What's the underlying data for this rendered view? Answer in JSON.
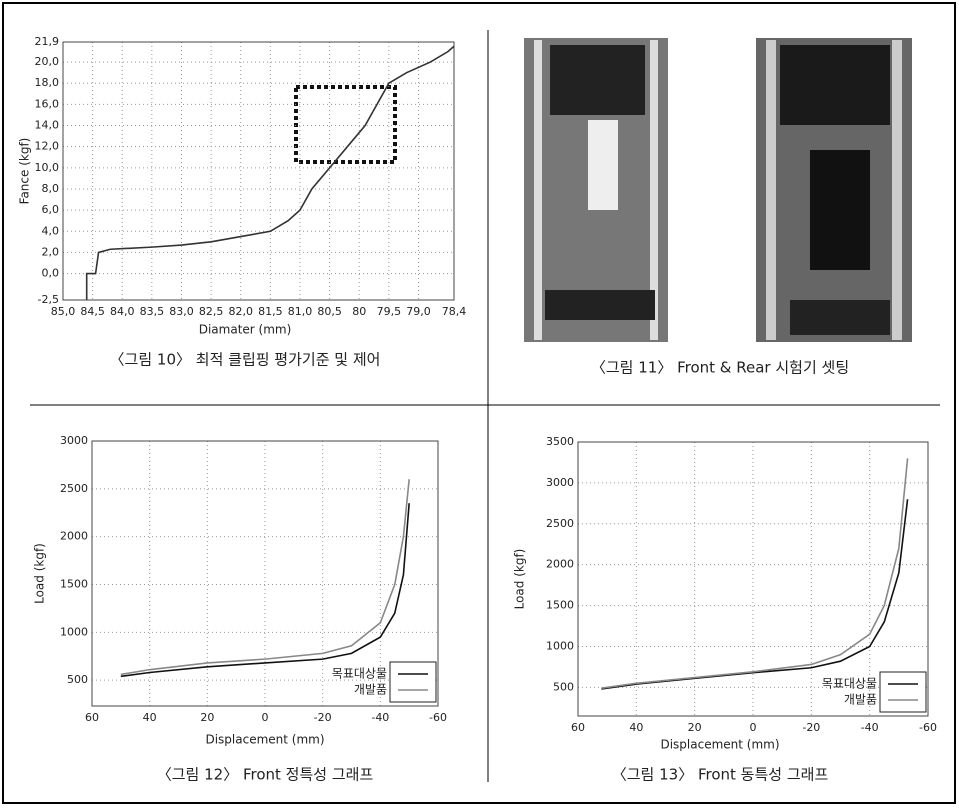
{
  "chart_data": [
    {
      "type": "line",
      "caption": "〈그림 10〉 최적 클립핑 평가기준 및 제어",
      "x_label": "Diamater (mm)",
      "y_label": "Fance (kgf)",
      "xlim": [
        85.0,
        78.4
      ],
      "xticks": [
        {
          "value": 85.0,
          "label": "85,0"
        },
        {
          "value": 84.5,
          "label": "84,5"
        },
        {
          "value": 84.0,
          "label": "84,0"
        },
        {
          "value": 83.5,
          "label": "83,5"
        },
        {
          "value": 83.0,
          "label": "83,0"
        },
        {
          "value": 82.5,
          "label": "82,5"
        },
        {
          "value": 82.0,
          "label": "82,0"
        },
        {
          "value": 81.5,
          "label": "81,5"
        },
        {
          "value": 81.0,
          "label": "81,0"
        },
        {
          "value": 80.5,
          "label": "80,5"
        },
        80,
        {
          "value": 79.5,
          "label": "79,5"
        },
        {
          "value": 79.0,
          "label": "79,0"
        },
        {
          "value": 78.4,
          "label": "78,4"
        }
      ],
      "ylim": [
        -2.5,
        21.9
      ],
      "yticks": [
        {
          "value": -2.5,
          "label": "-2,5"
        },
        {
          "value": 0,
          "label": "0,0"
        },
        {
          "value": 2,
          "label": "2,0"
        },
        {
          "value": 4,
          "label": "4,0"
        },
        {
          "value": 6,
          "label": "6,0"
        },
        {
          "value": 8,
          "label": "8,0"
        },
        {
          "value": 10,
          "label": "10,0"
        },
        {
          "value": 12,
          "label": "12,0"
        },
        {
          "value": 14,
          "label": "14,0"
        },
        {
          "value": 16,
          "label": "16,0"
        },
        {
          "value": 18,
          "label": "18,0"
        },
        {
          "value": 20,
          "label": "20,0"
        },
        {
          "value": 21.9,
          "label": "21,9"
        }
      ],
      "grid": true,
      "series": [
        {
          "color": "#333333",
          "x": [
            84.6,
            84.6,
            84.45,
            84.4,
            84.2,
            83.5,
            83.0,
            82.5,
            82.0,
            81.5,
            81.2,
            81.0,
            80.8,
            80.5,
            80.2,
            79.9,
            79.7,
            79.5,
            79.2,
            78.8,
            78.5,
            78.4
          ],
          "values": [
            -2.5,
            0,
            0,
            2.0,
            2.3,
            2.5,
            2.7,
            3.0,
            3.5,
            4.0,
            5.0,
            6.0,
            8.0,
            10.0,
            12.0,
            14.0,
            16.0,
            18.0,
            19.0,
            20.0,
            21.0,
            21.5
          ]
        }
      ]
    },
    {
      "type": "line",
      "caption": "〈그림 12〉 Front 정특성 그래프",
      "x_label": "Displacement (mm)",
      "y_label": "Load (kgf)",
      "xlim": [
        60,
        -60
      ],
      "xticks": [
        60,
        40,
        20,
        0,
        -20,
        -40,
        -60
      ],
      "ylim": [
        230,
        3000
      ],
      "yticks": [
        500,
        1000,
        1500,
        2000,
        2500,
        3000
      ],
      "grid": true,
      "legend": "lower right",
      "series": [
        {
          "name": "목표대상물",
          "color": "#111111",
          "x": [
            50,
            40,
            20,
            0,
            -20,
            -30,
            -40,
            -45,
            -48,
            -50
          ],
          "values": [
            540,
            580,
            640,
            680,
            720,
            780,
            950,
            1200,
            1600,
            2350
          ]
        },
        {
          "name": "개발품",
          "color": "#888888",
          "x": [
            50,
            40,
            20,
            0,
            -20,
            -30,
            -40,
            -45,
            -48,
            -50
          ],
          "values": [
            560,
            610,
            680,
            720,
            780,
            860,
            1100,
            1500,
            2000,
            2600
          ]
        }
      ]
    },
    {
      "type": "line",
      "caption": "〈그림 13〉 Front 동특성 그래프",
      "x_label": "Displacement (mm)",
      "y_label": "Load (kgf)",
      "xlim": [
        60,
        -60
      ],
      "xticks": [
        60,
        40,
        20,
        0,
        -20,
        -40,
        -60
      ],
      "ylim": [
        150,
        3500
      ],
      "yticks": [
        500,
        1000,
        1500,
        2000,
        2500,
        3000,
        3500
      ],
      "grid": true,
      "legend": "lower right",
      "series": [
        {
          "name": "목표대상물",
          "color": "#111111",
          "x": [
            52,
            40,
            20,
            0,
            -20,
            -30,
            -40,
            -45,
            -50,
            -53
          ],
          "values": [
            480,
            540,
            610,
            680,
            740,
            820,
            1000,
            1300,
            1900,
            2800
          ]
        },
        {
          "name": "개발품",
          "color": "#888888",
          "x": [
            52,
            40,
            20,
            0,
            -20,
            -30,
            -40,
            -45,
            -50,
            -53
          ],
          "values": [
            490,
            550,
            620,
            690,
            780,
            900,
            1150,
            1500,
            2200,
            3300
          ]
        }
      ]
    }
  ],
  "photo": {
    "caption": "〈그림 11〉 Front & Rear 시험기 셋팅"
  }
}
